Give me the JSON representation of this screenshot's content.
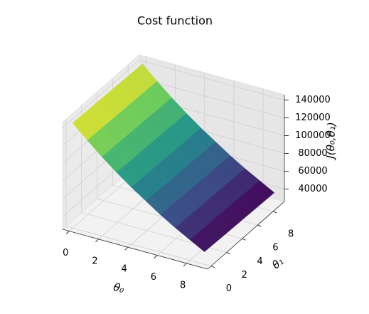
{
  "chart_data": {
    "type": "surface",
    "title": "Cost function",
    "xlabel": "θ₀",
    "ylabel": "θ₁",
    "zlabel": "J(θ₀,θ₁)",
    "x": [
      0,
      1,
      2,
      3,
      4,
      5,
      6,
      7,
      8,
      9
    ],
    "y": [
      0,
      1,
      2,
      3,
      4,
      5,
      6,
      7,
      8,
      9
    ],
    "z": [
      [
        144000,
        129000,
        115000,
        102000,
        90000,
        79000,
        68000,
        58000,
        49000,
        40000
      ],
      [
        143700,
        128700,
        114700,
        101700,
        89700,
        78700,
        67700,
        57700,
        48700,
        39700
      ],
      [
        143400,
        128400,
        114400,
        101400,
        89400,
        78400,
        67400,
        57400,
        48400,
        39400
      ],
      [
        143100,
        128100,
        114100,
        101100,
        89100,
        78100,
        67100,
        57100,
        48100,
        39100
      ],
      [
        142800,
        127800,
        113800,
        100800,
        88800,
        77800,
        66800,
        56800,
        47800,
        38800
      ],
      [
        142500,
        127500,
        113500,
        100500,
        88500,
        77500,
        66500,
        56500,
        47500,
        38500
      ],
      [
        142200,
        127200,
        113200,
        100200,
        88200,
        77200,
        66200,
        56200,
        47200,
        38200
      ],
      [
        141900,
        126900,
        112900,
        99900,
        87900,
        76900,
        65900,
        55900,
        46900,
        37900
      ],
      [
        141600,
        126600,
        112600,
        99600,
        87600,
        76600,
        65600,
        55600,
        46600,
        37600
      ],
      [
        141300,
        126300,
        112300,
        99300,
        87300,
        76300,
        65300,
        55300,
        46300,
        37300
      ]
    ],
    "colormap": "viridis",
    "xlim": [
      -0.45,
      9.45
    ],
    "ylim": [
      -0.45,
      9.45
    ],
    "zlim": [
      26000,
      146000
    ],
    "xticks": [
      0,
      2,
      4,
      6,
      8
    ],
    "yticks": [
      0,
      2,
      4,
      6,
      8
    ],
    "zticks": [
      40000,
      60000,
      80000,
      100000,
      120000,
      140000
    ],
    "grid": true
  }
}
